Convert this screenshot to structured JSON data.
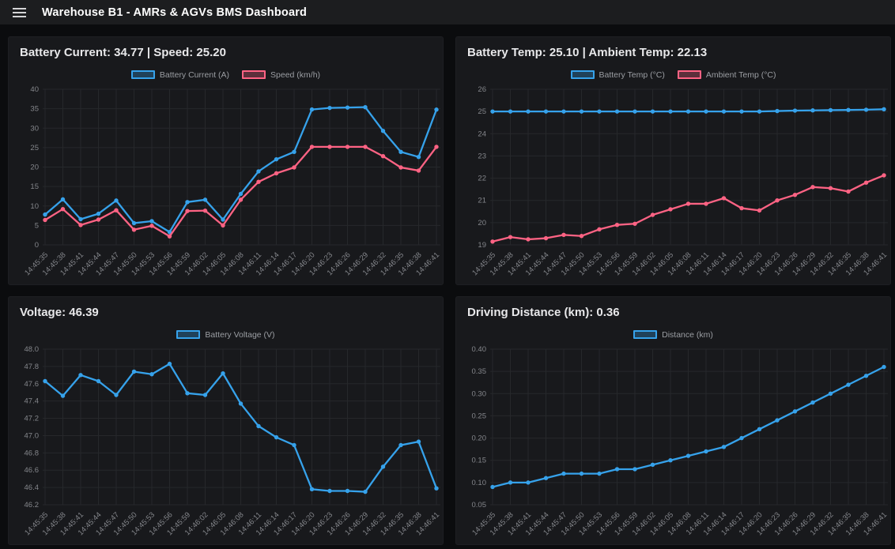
{
  "header": {
    "title": "Warehouse B1 - AMRs & AGVs BMS Dashboard",
    "menu_icon": "hamburger-icon"
  },
  "colors": {
    "blue": "#36a2eb",
    "pink": "#ff6384",
    "page_bg": "#0b0c0e",
    "panel_bg": "#18191c",
    "grid": "#26282b",
    "tick_text": "#84868b",
    "title_text": "#e8e8ea"
  },
  "timestamps": [
    "14:45:35",
    "14:45:38",
    "14:45:41",
    "14:45:44",
    "14:45:47",
    "14:45:50",
    "14:45:53",
    "14:45:56",
    "14:45:59",
    "14:46:02",
    "14:46:05",
    "14:46:08",
    "14:46:11",
    "14:46:14",
    "14:46:17",
    "14:46:20",
    "14:46:23",
    "14:46:26",
    "14:46:29",
    "14:46:32",
    "14:46:35",
    "14:46:38",
    "14:46:41"
  ],
  "chart_data": [
    {
      "type": "line",
      "title": "Battery Current: 34.77 | Speed: 25.20",
      "xlabel": "",
      "ylabel": "",
      "legend_position": "top",
      "grid": true,
      "ylim": [
        0,
        40
      ],
      "y_ticks": [
        "0",
        "5",
        "10",
        "15",
        "20",
        "25",
        "30",
        "35",
        "40"
      ],
      "categories": [
        "14:45:35",
        "14:45:38",
        "14:45:41",
        "14:45:44",
        "14:45:47",
        "14:45:50",
        "14:45:53",
        "14:45:56",
        "14:45:59",
        "14:46:02",
        "14:46:05",
        "14:46:08",
        "14:46:11",
        "14:46:14",
        "14:46:17",
        "14:46:20",
        "14:46:23",
        "14:46:26",
        "14:46:29",
        "14:46:32",
        "14:46:35",
        "14:46:38",
        "14:46:41"
      ],
      "series": [
        {
          "name": "Battery Current (A)",
          "color": "#36a2eb",
          "values": [
            7.8,
            11.7,
            6.6,
            8.0,
            11.4,
            5.6,
            6.1,
            3.3,
            11.0,
            11.6,
            6.5,
            13.1,
            18.9,
            22.0,
            23.9,
            34.8,
            35.2,
            35.3,
            35.4,
            29.3,
            23.9,
            22.6,
            34.77
          ]
        },
        {
          "name": "Speed (km/h)",
          "color": "#ff6384",
          "values": [
            6.4,
            9.2,
            5.1,
            6.5,
            8.9,
            3.9,
            4.9,
            2.2,
            8.7,
            8.8,
            5.0,
            11.6,
            16.2,
            18.4,
            19.9,
            25.2,
            25.2,
            25.2,
            25.2,
            22.8,
            19.9,
            19.1,
            25.2
          ]
        }
      ]
    },
    {
      "type": "line",
      "title": "Battery Temp: 25.10 | Ambient Temp: 22.13",
      "xlabel": "",
      "ylabel": "",
      "legend_position": "top",
      "grid": true,
      "ylim": [
        19,
        26
      ],
      "y_ticks": [
        "19",
        "20",
        "21",
        "22",
        "23",
        "24",
        "25",
        "26"
      ],
      "categories": [
        "14:45:35",
        "14:45:38",
        "14:45:41",
        "14:45:44",
        "14:45:47",
        "14:45:50",
        "14:45:53",
        "14:45:56",
        "14:45:59",
        "14:46:02",
        "14:46:05",
        "14:46:08",
        "14:46:11",
        "14:46:14",
        "14:46:17",
        "14:46:20",
        "14:46:23",
        "14:46:26",
        "14:46:29",
        "14:46:32",
        "14:46:35",
        "14:46:38",
        "14:46:41"
      ],
      "series": [
        {
          "name": "Battery Temp (°C)",
          "color": "#36a2eb",
          "values": [
            25,
            25,
            25,
            25,
            25,
            25,
            25,
            25,
            25,
            25,
            25,
            25,
            25,
            25,
            25,
            25,
            25.02,
            25.04,
            25.05,
            25.06,
            25.07,
            25.08,
            25.1
          ]
        },
        {
          "name": "Ambient Temp (°C)",
          "color": "#ff6384",
          "values": [
            19.15,
            19.35,
            19.25,
            19.3,
            19.45,
            19.4,
            19.7,
            19.9,
            19.95,
            20.35,
            20.6,
            20.85,
            20.85,
            21.1,
            20.65,
            20.55,
            21.0,
            21.25,
            21.6,
            21.55,
            21.4,
            21.8,
            22.13
          ]
        }
      ]
    },
    {
      "type": "line",
      "title": "Voltage: 46.39",
      "xlabel": "",
      "ylabel": "",
      "legend_position": "top",
      "grid": true,
      "ylim": [
        46.2,
        48.0
      ],
      "y_ticks": [
        "46.2",
        "46.4",
        "46.6",
        "46.8",
        "47.0",
        "47.2",
        "47.4",
        "47.6",
        "47.8",
        "48.0"
      ],
      "categories": [
        "14:45:35",
        "14:45:38",
        "14:45:41",
        "14:45:44",
        "14:45:47",
        "14:45:50",
        "14:45:53",
        "14:45:56",
        "14:45:59",
        "14:46:02",
        "14:46:05",
        "14:46:08",
        "14:46:11",
        "14:46:14",
        "14:46:17",
        "14:46:20",
        "14:46:23",
        "14:46:26",
        "14:46:29",
        "14:46:32",
        "14:46:35",
        "14:46:38",
        "14:46:41"
      ],
      "series": [
        {
          "name": "Battery Voltage (V)",
          "color": "#36a2eb",
          "values": [
            47.63,
            47.46,
            47.7,
            47.63,
            47.47,
            47.74,
            47.71,
            47.83,
            47.49,
            47.47,
            47.72,
            47.37,
            47.11,
            46.98,
            46.89,
            46.38,
            46.36,
            46.36,
            46.35,
            46.64,
            46.89,
            46.93,
            46.39
          ]
        }
      ]
    },
    {
      "type": "line",
      "title": "Driving Distance (km): 0.36",
      "xlabel": "",
      "ylabel": "",
      "legend_position": "top",
      "grid": true,
      "ylim": [
        0.05,
        0.4
      ],
      "y_ticks": [
        "0.05",
        "0.10",
        "0.15",
        "0.20",
        "0.25",
        "0.30",
        "0.35",
        "0.40"
      ],
      "categories": [
        "14:45:35",
        "14:45:38",
        "14:45:41",
        "14:45:44",
        "14:45:47",
        "14:45:50",
        "14:45:53",
        "14:45:56",
        "14:45:59",
        "14:46:02",
        "14:46:05",
        "14:46:08",
        "14:46:11",
        "14:46:14",
        "14:46:17",
        "14:46:20",
        "14:46:23",
        "14:46:26",
        "14:46:29",
        "14:46:32",
        "14:46:35",
        "14:46:38",
        "14:46:41"
      ],
      "series": [
        {
          "name": "Distance (km)",
          "color": "#36a2eb",
          "values": [
            0.09,
            0.1,
            0.1,
            0.11,
            0.12,
            0.12,
            0.12,
            0.13,
            0.13,
            0.14,
            0.15,
            0.16,
            0.17,
            0.18,
            0.2,
            0.22,
            0.24,
            0.26,
            0.28,
            0.3,
            0.32,
            0.34,
            0.36
          ]
        }
      ]
    }
  ]
}
